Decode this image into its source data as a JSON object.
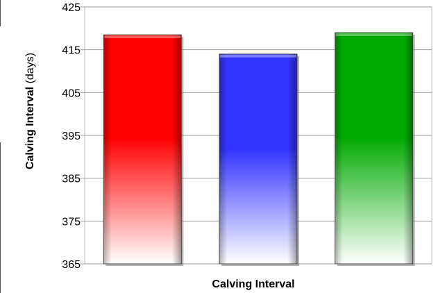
{
  "chart_data": {
    "type": "bar",
    "title": "",
    "xlabel": "Calving Interval",
    "ylabel_bold": "Calving Interval",
    "ylabel_unit": " (days)",
    "ylim": [
      365,
      425
    ],
    "yticks": [
      365,
      375,
      385,
      395,
      405,
      415,
      425
    ],
    "grid": true,
    "legend": "none",
    "series": [
      {
        "values": [
          418.5,
          414,
          419
        ]
      }
    ],
    "bar_colors": [
      "#ff0000",
      "#3333ff",
      "#00aa00"
    ]
  }
}
